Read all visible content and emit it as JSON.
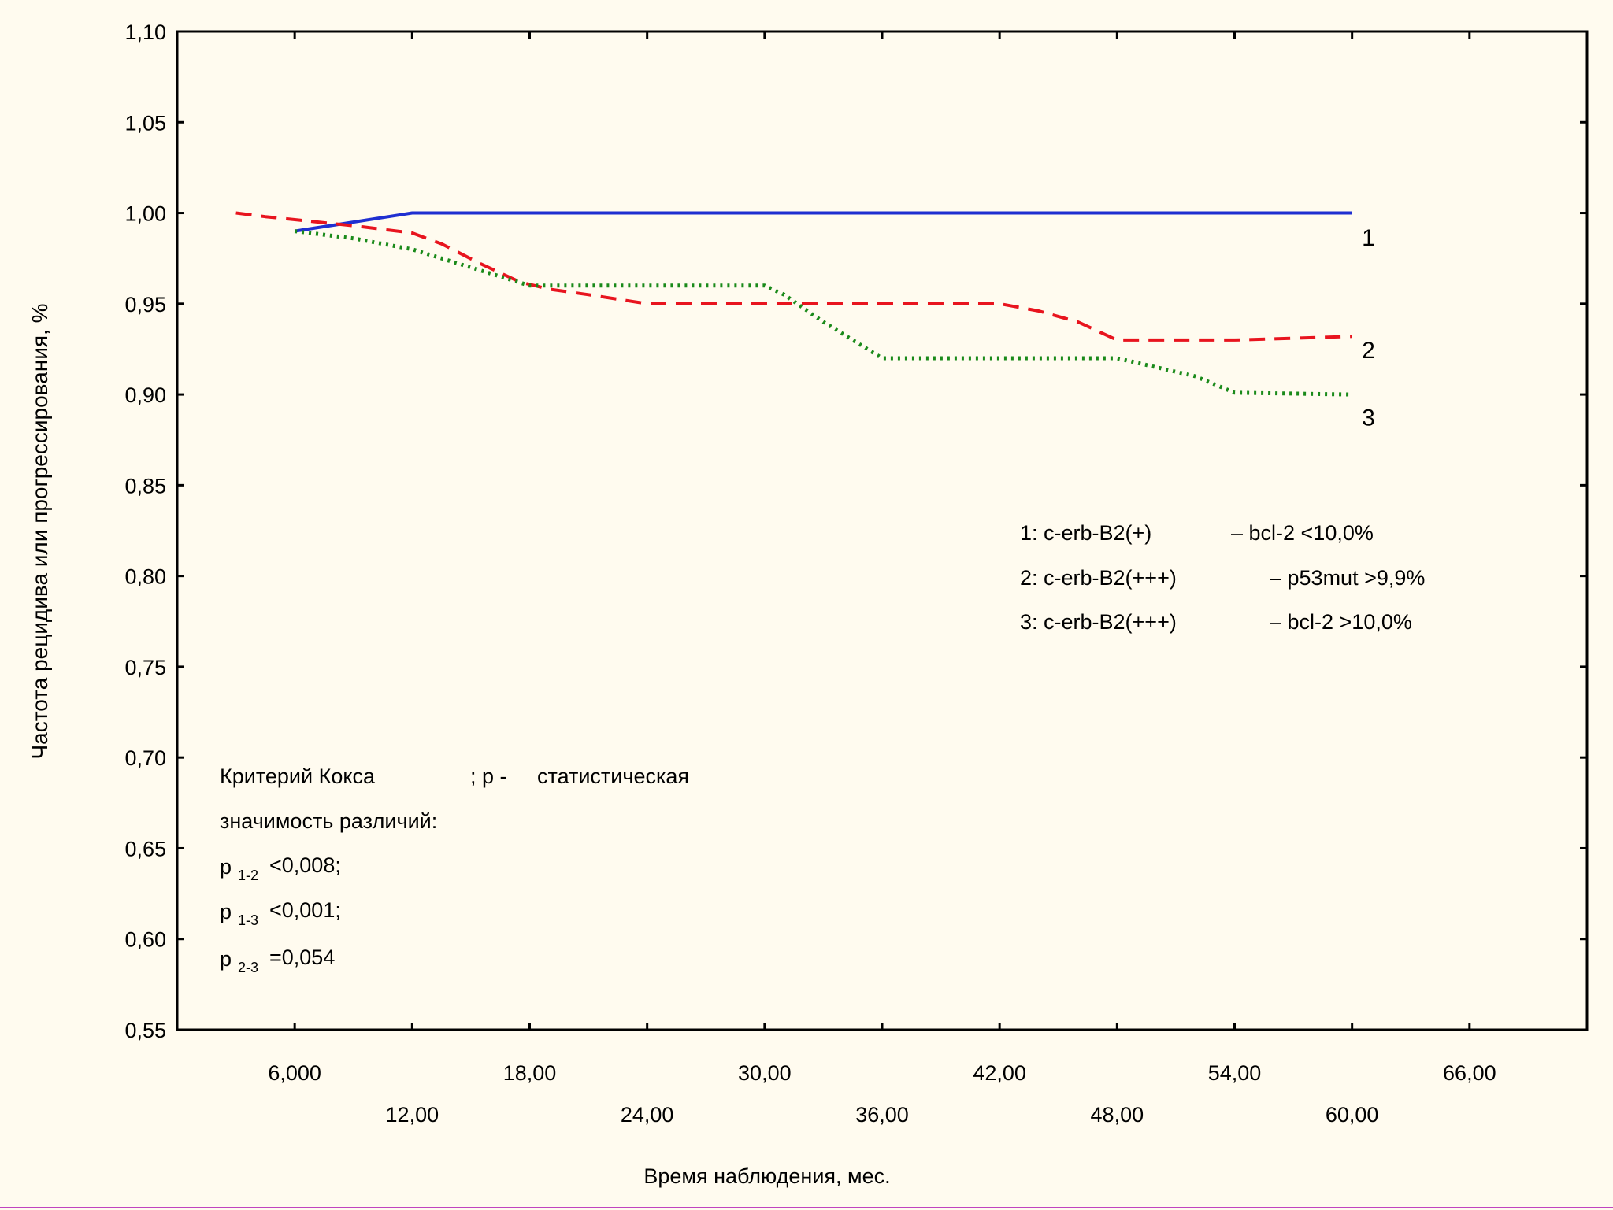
{
  "chart_data": {
    "type": "line",
    "title": "",
    "ylabel": "Частота рецидива или прогрессирования, %",
    "xlabel": "Время наблюдения, мес.",
    "xlim": [
      0,
      72
    ],
    "ylim": [
      0.55,
      1.1
    ],
    "yticks": [
      "0,55",
      "0,60",
      "0,65",
      "0,70",
      "0,75",
      "0,80",
      "0,85",
      "0,90",
      "0,95",
      "1,00",
      "1,05",
      "1,10"
    ],
    "ytick_values": [
      0.55,
      0.6,
      0.65,
      0.7,
      0.75,
      0.8,
      0.85,
      0.9,
      0.95,
      1.0,
      1.05,
      1.1
    ],
    "xticks_upper": [
      "6,000",
      "18,00",
      "30,00",
      "42,00",
      "54,00",
      "66,00"
    ],
    "xticks_upper_values": [
      6,
      18,
      30,
      42,
      54,
      66
    ],
    "xticks_lower": [
      "12,00",
      "24,00",
      "36,00",
      "48,00",
      "60,00"
    ],
    "xticks_lower_values": [
      12,
      24,
      36,
      48,
      60
    ],
    "grid": false,
    "series": [
      {
        "name": "1",
        "color": "#1f2fd1",
        "style": "solid",
        "x": [
          6,
          12,
          60
        ],
        "y": [
          0.99,
          1.0,
          1.0
        ]
      },
      {
        "name": "2",
        "color": "#e8141e",
        "style": "dashed",
        "x": [
          3,
          4.5,
          6.3,
          9,
          12,
          13.5,
          15.5,
          17.5,
          19,
          21,
          24,
          30,
          42,
          44,
          46,
          48,
          54,
          60
        ],
        "y": [
          1.0,
          0.998,
          0.996,
          0.993,
          0.989,
          0.983,
          0.972,
          0.962,
          0.958,
          0.955,
          0.95,
          0.95,
          0.95,
          0.946,
          0.94,
          0.93,
          0.93,
          0.932
        ]
      },
      {
        "name": "3",
        "color": "#1a8a1a",
        "style": "dotted",
        "x": [
          6,
          9,
          12,
          15,
          18,
          24,
          30,
          31,
          33,
          36,
          42,
          48,
          50,
          52,
          54,
          60
        ],
        "y": [
          0.99,
          0.986,
          0.98,
          0.97,
          0.96,
          0.96,
          0.96,
          0.955,
          0.94,
          0.92,
          0.92,
          0.92,
          0.915,
          0.91,
          0.901,
          0.9
        ]
      }
    ],
    "curve_labels": [
      {
        "text": "1",
        "x": 60.5,
        "y": 0.982
      },
      {
        "text": "2",
        "x": 60.5,
        "y": 0.92
      },
      {
        "text": "3",
        "x": 60.5,
        "y": 0.883
      }
    ]
  },
  "legend": {
    "rows": [
      {
        "left": "1: c-erb-B2(+)",
        "right": "–  bcl-2 <10,0%"
      },
      {
        "left": "2: c-erb-B2(+++)",
        "right": "–  p53mut >9,9%"
      },
      {
        "left": "3: c-erb-B2(+++)",
        "right": "–  bcl-2 >10,0%"
      }
    ]
  },
  "stats": {
    "line1_a": "Критерий Кокса",
    "line1_b": "; p -",
    "line1_c": "статистическая",
    "line2": "значимость различий:",
    "p12_p": "p",
    "p12_sub": "1-2",
    "p12_val": "<0,008;",
    "p13_p": "p",
    "p13_sub": "1-3",
    "p13_val": "<0,001;",
    "p23_p": "p",
    "p23_sub": "2-3",
    "p23_val": "=0,054"
  }
}
